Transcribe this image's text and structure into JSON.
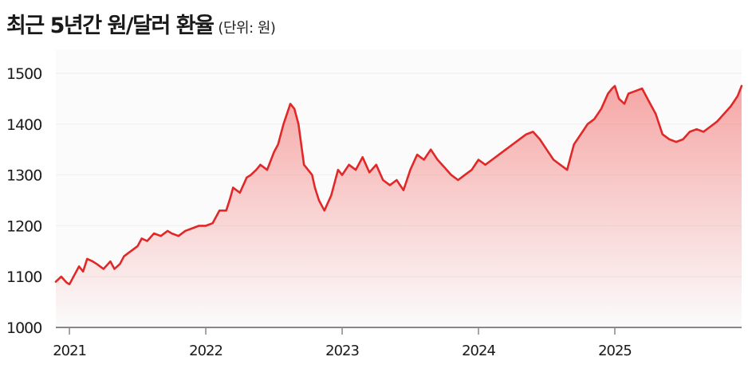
{
  "header": {
    "title": "최근 5년간 원/달러 환율",
    "unit": "(단위: 원)"
  },
  "colors": {
    "line": "#e02828",
    "fill_top": "#ef5350",
    "axis": "#888888",
    "grid": "#eeeeee"
  },
  "chart_data": {
    "type": "area",
    "title": "최근 5년간 원/달러 환율",
    "subtitle": "(단위: 원)",
    "xlabel": "",
    "ylabel": "",
    "ylim": [
      1000,
      1500
    ],
    "xlim": [
      2020.9,
      2025.93
    ],
    "grid": true,
    "legend": "none",
    "yticks": [
      1000,
      1100,
      1200,
      1300,
      1400,
      1500
    ],
    "xticks": [
      2021,
      2022,
      2023,
      2024,
      2025
    ],
    "xtick_labels": [
      "2021",
      "2022",
      "2023",
      "2024",
      "2025"
    ],
    "series": [
      {
        "x": [
          2020.9,
          2020.94,
          2020.98,
          2021.0,
          2021.03,
          2021.07,
          2021.1,
          2021.13,
          2021.17,
          2021.2,
          2021.25,
          2021.3,
          2021.33,
          2021.37,
          2021.4,
          2021.45,
          2021.5,
          2021.53,
          2021.57,
          2021.62,
          2021.67,
          2021.72,
          2021.75,
          2021.8,
          2021.85,
          2021.9,
          2021.95,
          2022.0,
          2022.05,
          2022.1,
          2022.15,
          2022.18,
          2022.2,
          2022.25,
          2022.3,
          2022.33,
          2022.37,
          2022.4,
          2022.45,
          2022.5,
          2022.53,
          2022.57,
          2022.62,
          2022.65,
          2022.68,
          2022.72,
          2022.75,
          2022.78,
          2022.8,
          2022.83,
          2022.87,
          2022.92,
          2022.97,
          2023.0,
          2023.05,
          2023.1,
          2023.15,
          2023.2,
          2023.25,
          2023.3,
          2023.35,
          2023.4,
          2023.45,
          2023.5,
          2023.55,
          2023.6,
          2023.65,
          2023.7,
          2023.75,
          2023.8,
          2023.85,
          2023.9,
          2023.95,
          2024.0,
          2024.05,
          2024.1,
          2024.15,
          2024.2,
          2024.25,
          2024.3,
          2024.35,
          2024.4,
          2024.45,
          2024.5,
          2024.55,
          2024.6,
          2024.65,
          2024.7,
          2024.75,
          2024.8,
          2024.85,
          2024.9,
          2024.95,
          2024.98,
          2025.0,
          2025.03,
          2025.07,
          2025.1,
          2025.15,
          2025.2,
          2025.25,
          2025.3,
          2025.35,
          2025.4,
          2025.45,
          2025.5,
          2025.55,
          2025.6,
          2025.65,
          2025.7,
          2025.75,
          2025.8,
          2025.85,
          2025.9,
          2025.93
        ],
        "values": [
          1090,
          1100,
          1088,
          1085,
          1100,
          1120,
          1110,
          1135,
          1130,
          1125,
          1115,
          1130,
          1115,
          1125,
          1140,
          1150,
          1160,
          1175,
          1170,
          1185,
          1180,
          1190,
          1185,
          1180,
          1190,
          1195,
          1200,
          1200,
          1205,
          1230,
          1230,
          1255,
          1275,
          1265,
          1295,
          1300,
          1310,
          1320,
          1310,
          1345,
          1360,
          1400,
          1440,
          1430,
          1400,
          1320,
          1310,
          1300,
          1275,
          1250,
          1230,
          1260,
          1310,
          1300,
          1320,
          1310,
          1335,
          1305,
          1320,
          1290,
          1280,
          1290,
          1270,
          1310,
          1340,
          1330,
          1350,
          1330,
          1315,
          1300,
          1290,
          1300,
          1310,
          1330,
          1320,
          1330,
          1340,
          1350,
          1360,
          1370,
          1380,
          1385,
          1370,
          1350,
          1330,
          1320,
          1310,
          1360,
          1380,
          1400,
          1410,
          1430,
          1460,
          1470,
          1475,
          1450,
          1440,
          1460,
          1465,
          1470,
          1445,
          1420,
          1380,
          1370,
          1365,
          1370,
          1385,
          1390,
          1385,
          1395,
          1405,
          1420,
          1435,
          1455,
          1475
        ]
      }
    ]
  }
}
